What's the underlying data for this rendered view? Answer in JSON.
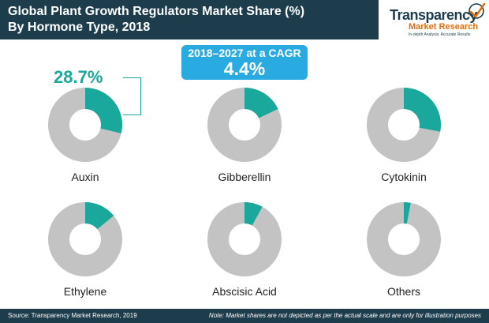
{
  "header": {
    "title_line1": "Global Plant Growth Regulators Market Share (%)",
    "title_line2": "By Hormone Type, 2018"
  },
  "logo": {
    "name": "Transparency",
    "sub": "Market Research",
    "tagline": "In-depth Analysis. Accurate Results"
  },
  "cagr": {
    "label": "2018–2027 at a CAGR",
    "value": "4.4%"
  },
  "highlight": {
    "value": "28.7%"
  },
  "chart_data": {
    "type": "pie",
    "series": [
      {
        "label": "Auxin",
        "value": 28.7
      },
      {
        "label": "Gibberellin",
        "value": 18
      },
      {
        "label": "Cytokinin",
        "value": 28
      },
      {
        "label": "Ethylene",
        "value": 14
      },
      {
        "label": "Abscisic Acid",
        "value": 8
      },
      {
        "label": "Others",
        "value": 3
      }
    ],
    "colors": {
      "share": "#1aa89c",
      "rest": "#c3c3c3"
    }
  },
  "footer": {
    "source": "Source: Transparency Market Research, 2019",
    "note": "Note: Market shares are not depicted as per the actual scale and are only for illustration purposes"
  }
}
